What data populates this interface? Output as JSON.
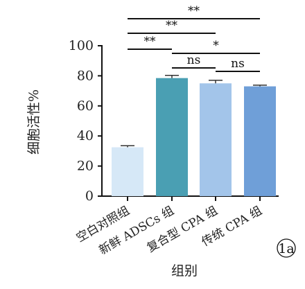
{
  "chart_data": {
    "type": "bar",
    "categories": [
      "空白对照组",
      "新鲜 ADSCs 组",
      "复合型 CPA 组",
      "传统 CPA 组"
    ],
    "values": [
      32.5,
      78.5,
      75.0,
      73.0
    ],
    "errors": [
      1.0,
      1.8,
      2.0,
      0.8
    ],
    "xlabel": "组别",
    "ylabel": "细胞活性%",
    "ylim": [
      0,
      100
    ],
    "yticks": [
      0,
      20,
      40,
      60,
      80,
      100
    ],
    "grid": false,
    "legend": "none",
    "colors": [
      "#d6e8f7",
      "#4a9fb3",
      "#a3c5ea",
      "#6f9fd8"
    ],
    "significance": [
      {
        "from": 0,
        "to": 3,
        "label": "**"
      },
      {
        "from": 0,
        "to": 2,
        "label": "**"
      },
      {
        "from": 0,
        "to": 1,
        "label": "**"
      },
      {
        "from": 1,
        "to": 3,
        "label": "*"
      },
      {
        "from": 1,
        "to": 2,
        "label": "ns"
      },
      {
        "from": 2,
        "to": 3,
        "label": "ns"
      }
    ],
    "panel_label": "1a"
  }
}
